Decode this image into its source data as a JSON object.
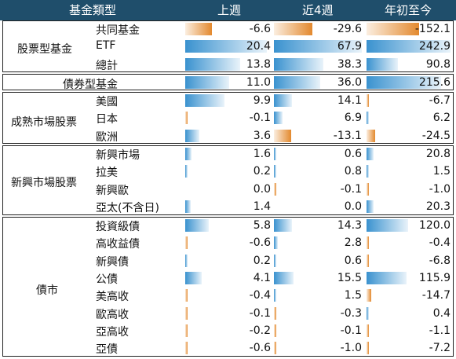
{
  "header": {
    "col0": "基金類型",
    "col1": "上週",
    "col2": "近4週",
    "col3": "年初至今"
  },
  "colors": {
    "header_bg": "#1f4e6b",
    "positive_bar": "#3a92cf",
    "negative_bar": "#e3892e"
  },
  "groups": [
    {
      "label": "股票型基金",
      "rows": [
        {
          "label": "共同基金",
          "vals": [
            "-6.6",
            "-29.6",
            "-152.1"
          ]
        },
        {
          "label": "ETF",
          "vals": [
            "20.4",
            "67.9",
            "242.9"
          ]
        },
        {
          "label": "總計",
          "vals": [
            "13.8",
            "38.3",
            "90.8"
          ]
        }
      ]
    },
    {
      "label": "債券型基金",
      "rows": [
        {
          "label": "",
          "vals": [
            "11.0",
            "36.0",
            "215.6"
          ]
        }
      ]
    },
    {
      "label": "成熟市場股票",
      "rows": [
        {
          "label": "美國",
          "vals": [
            "9.9",
            "14.1",
            "-6.7"
          ]
        },
        {
          "label": "日本",
          "vals": [
            "-0.1",
            "6.9",
            "6.2"
          ]
        },
        {
          "label": "歐洲",
          "vals": [
            "3.6",
            "-13.1",
            "-24.5"
          ]
        }
      ]
    },
    {
      "label": "新興市場股票",
      "rows": [
        {
          "label": "新興市場",
          "vals": [
            "1.6",
            "0.6",
            "20.8"
          ]
        },
        {
          "label": "拉美",
          "vals": [
            "0.2",
            "0.8",
            "1.5"
          ]
        },
        {
          "label": "新興歐",
          "vals": [
            "0.0",
            "-0.1",
            "-1.0"
          ]
        },
        {
          "label": "亞太(不含日)",
          "vals": [
            "1.4",
            "0.0",
            "20.3"
          ]
        }
      ]
    },
    {
      "label": "債市",
      "rows": [
        {
          "label": "投資級債",
          "vals": [
            "5.8",
            "14.3",
            "120.0"
          ]
        },
        {
          "label": "高收益債",
          "vals": [
            "-0.6",
            "2.8",
            "-0.4"
          ]
        },
        {
          "label": "新興債",
          "vals": [
            "0.2",
            "0.6",
            "-6.8"
          ]
        },
        {
          "label": "公債",
          "vals": [
            "4.1",
            "15.5",
            "115.9"
          ]
        },
        {
          "label": "美高收",
          "vals": [
            "-0.4",
            "1.5",
            "-14.7"
          ]
        },
        {
          "label": "歐高收",
          "vals": [
            "-0.1",
            "-0.3",
            "0.4"
          ]
        },
        {
          "label": "亞高收",
          "vals": [
            "-0.2",
            "-0.1",
            "-1.1"
          ]
        },
        {
          "label": "亞債",
          "vals": [
            "-0.6",
            "-1.0",
            "-7.2"
          ]
        }
      ]
    }
  ]
}
